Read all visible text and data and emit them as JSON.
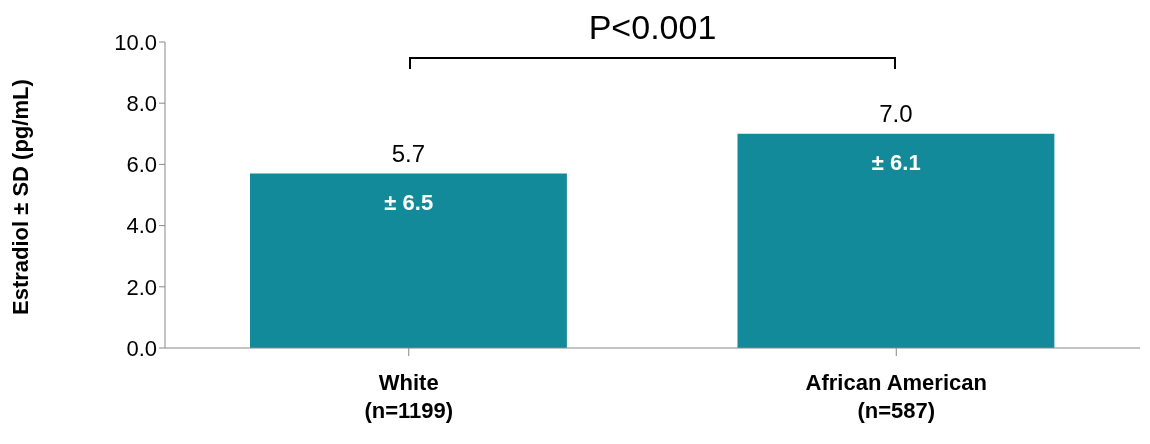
{
  "chart_data": {
    "type": "bar",
    "categories": [
      "White\n(n=1199)",
      "African American\n(n=587)"
    ],
    "values": [
      5.7,
      7.0
    ],
    "color": "#138a9a",
    "value_labels": [
      "5.7",
      "7.0"
    ],
    "ylabel": "Estradiol ± SD (pg/mL)",
    "ylim": [
      0,
      10
    ],
    "yticks": [
      {
        "value": 0,
        "label": "0.0"
      },
      {
        "value": 2,
        "label": "2.0"
      },
      {
        "value": 4,
        "label": "4.0"
      },
      {
        "value": 6,
        "label": "6.0"
      },
      {
        "value": 8,
        "label": "8.0"
      },
      {
        "value": 10,
        "label": "10.0"
      }
    ],
    "grid": false,
    "annotations": [
      "P<0.001",
      "± 6.5",
      "± 6.1"
    ]
  }
}
